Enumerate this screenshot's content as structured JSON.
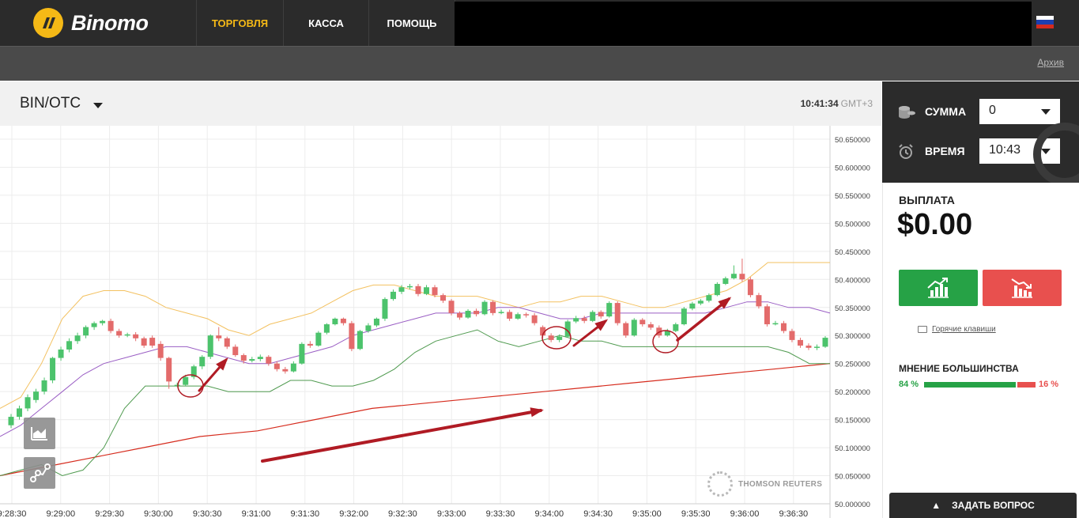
{
  "brand": {
    "name": "Binomo",
    "logo_color": "#f5b916"
  },
  "nav": {
    "items": [
      {
        "label": "ТОРГОВЛЯ",
        "active": true
      },
      {
        "label": "КАССА",
        "active": false
      },
      {
        "label": "ПОМОЩЬ",
        "active": false
      }
    ],
    "flag_icon": "russia-flag-icon"
  },
  "subbar": {
    "archive_label": "Архив"
  },
  "chart_header": {
    "asset": "BIN/OTC",
    "time": "10:41:34",
    "timezone": "GMT+3"
  },
  "panel": {
    "sum_label": "СУММА",
    "sum_value": "0",
    "time_label": "ВРЕМЯ",
    "time_value": "10:43",
    "payout_label": "ВЫПЛАТА",
    "payout_value": "$0.00",
    "hotkeys_label": "Горячие клавиши",
    "majority_label": "МНЕНИЕ БОЛЬШИНСТВА",
    "majority_up": "84 %",
    "majority_down": "16 %",
    "majority_up_fraction": 0.84,
    "ask_label": "ЗАДАТЬ ВОПРОС"
  },
  "colors": {
    "up": "#26a246",
    "down": "#e8504e",
    "candle_up": "#4cc36c",
    "candle_down": "#e36b6b",
    "accent": "#f5b916"
  },
  "watermark": "THOMSON REUTERS",
  "chart_data": {
    "type": "candlestick",
    "y_ticks": [
      "50.650000",
      "50.600000",
      "50.550000",
      "50.500000",
      "50.450000",
      "50.400000",
      "50.350000",
      "50.300000",
      "50.250000",
      "50.200000",
      "50.150000",
      "50.100000",
      "50.050000",
      "50.000000"
    ],
    "ylim": [
      50.0,
      50.67
    ],
    "x_ticks": [
      "9:28:30",
      "9:29:00",
      "9:29:30",
      "9:30:00",
      "9:30:30",
      "9:31:00",
      "9:31:30",
      "9:32:00",
      "9:32:30",
      "9:33:00",
      "9:33:30",
      "9:34:00",
      "9:34:30",
      "9:35:00",
      "9:35:30",
      "9:36:00",
      "9:36:30"
    ],
    "candles": [
      [
        50.14,
        50.155,
        50.135,
        50.16
      ],
      [
        50.155,
        50.17,
        50.15,
        50.175
      ],
      [
        50.17,
        50.19,
        50.165,
        50.195
      ],
      [
        50.185,
        50.2,
        50.18,
        50.205
      ],
      [
        50.2,
        50.22,
        50.195,
        50.225
      ],
      [
        50.22,
        50.26,
        50.215,
        50.262
      ],
      [
        50.26,
        50.275,
        50.255,
        50.28
      ],
      [
        50.275,
        50.29,
        50.27,
        50.295
      ],
      [
        50.29,
        50.3,
        50.285,
        50.305
      ],
      [
        50.3,
        50.315,
        50.295,
        50.318
      ],
      [
        50.315,
        50.322,
        50.31,
        50.325
      ],
      [
        50.322,
        50.326,
        50.318,
        50.328
      ],
      [
        50.326,
        50.308,
        50.304,
        50.33
      ],
      [
        50.308,
        50.3,
        50.296,
        50.312
      ],
      [
        50.3,
        50.302,
        50.297,
        50.305
      ],
      [
        50.302,
        50.295,
        50.29,
        50.306
      ],
      [
        50.295,
        50.282,
        50.278,
        50.298
      ],
      [
        50.296,
        50.282,
        50.278,
        50.3
      ],
      [
        50.285,
        50.26,
        50.255,
        50.29
      ],
      [
        50.26,
        50.218,
        50.205,
        50.262
      ],
      [
        50.21,
        50.212,
        50.208,
        50.216
      ],
      [
        50.212,
        50.226,
        50.21,
        50.23
      ],
      [
        50.226,
        50.245,
        50.222,
        50.248
      ],
      [
        50.245,
        50.262,
        50.24,
        50.265
      ],
      [
        50.262,
        50.3,
        50.258,
        50.302
      ],
      [
        50.3,
        50.295,
        50.29,
        50.315
      ],
      [
        50.295,
        50.28,
        50.276,
        50.298
      ],
      [
        50.28,
        50.265,
        50.262,
        50.284
      ],
      [
        50.265,
        50.255,
        50.25,
        50.268
      ],
      [
        50.255,
        50.258,
        50.252,
        50.262
      ],
      [
        50.258,
        50.262,
        50.254,
        50.266
      ],
      [
        50.262,
        50.25,
        50.246,
        50.265
      ],
      [
        50.25,
        50.24,
        50.236,
        50.254
      ],
      [
        50.24,
        50.236,
        50.232,
        50.244
      ],
      [
        50.236,
        50.25,
        50.234,
        50.254
      ],
      [
        50.25,
        50.285,
        50.248,
        50.288
      ],
      [
        50.285,
        50.282,
        50.278,
        50.29
      ],
      [
        50.282,
        50.305,
        50.28,
        50.308
      ],
      [
        50.305,
        50.32,
        50.302,
        50.322
      ],
      [
        50.32,
        50.33,
        50.318,
        50.332
      ],
      [
        50.33,
        50.322,
        50.318,
        50.332
      ],
      [
        50.322,
        50.276,
        50.272,
        50.326
      ],
      [
        50.276,
        50.308,
        50.274,
        50.31
      ],
      [
        50.308,
        50.318,
        50.305,
        50.322
      ],
      [
        50.318,
        50.33,
        50.315,
        50.332
      ],
      [
        50.33,
        50.365,
        50.326,
        50.368
      ],
      [
        50.365,
        50.378,
        50.362,
        50.382
      ],
      [
        50.378,
        50.386,
        50.374,
        50.39
      ],
      [
        50.386,
        50.388,
        50.382,
        50.392
      ],
      [
        50.388,
        50.374,
        50.37,
        50.392
      ],
      [
        50.374,
        50.386,
        50.372,
        50.39
      ],
      [
        50.386,
        50.372,
        50.368,
        50.39
      ],
      [
        50.372,
        50.362,
        50.358,
        50.375
      ],
      [
        50.362,
        50.34,
        50.336,
        50.365
      ],
      [
        50.34,
        50.332,
        50.328,
        50.343
      ],
      [
        50.332,
        50.344,
        50.33,
        50.347
      ],
      [
        50.344,
        50.338,
        50.334,
        50.348
      ],
      [
        50.338,
        50.36,
        50.336,
        50.363
      ],
      [
        50.36,
        50.34,
        50.336,
        50.363
      ],
      [
        50.34,
        50.342,
        50.338,
        50.346
      ],
      [
        50.342,
        50.33,
        50.326,
        50.346
      ],
      [
        50.33,
        50.338,
        50.328,
        50.341
      ],
      [
        50.338,
        50.336,
        50.332,
        50.341
      ],
      [
        50.336,
        50.322,
        50.318,
        50.34
      ],
      [
        50.315,
        50.3,
        50.296,
        50.318
      ],
      [
        50.3,
        50.292,
        50.288,
        50.304
      ],
      [
        50.292,
        50.298,
        50.288,
        50.302
      ],
      [
        50.298,
        50.325,
        50.296,
        50.328
      ],
      [
        50.325,
        50.331,
        50.322,
        50.335
      ],
      [
        50.331,
        50.326,
        50.322,
        50.335
      ],
      [
        50.326,
        50.342,
        50.324,
        50.345
      ],
      [
        50.342,
        50.334,
        50.33,
        50.345
      ],
      [
        50.334,
        50.358,
        50.332,
        50.361
      ],
      [
        50.358,
        50.322,
        50.318,
        50.361
      ],
      [
        50.322,
        50.3,
        50.296,
        50.325
      ],
      [
        50.3,
        50.328,
        50.298,
        50.331
      ],
      [
        50.328,
        50.32,
        50.316,
        50.331
      ],
      [
        50.32,
        50.314,
        50.31,
        50.324
      ],
      [
        50.314,
        50.3,
        50.296,
        50.318
      ],
      [
        50.3,
        50.308,
        50.298,
        50.312
      ],
      [
        50.308,
        50.32,
        50.306,
        50.323
      ],
      [
        50.32,
        50.348,
        50.318,
        50.351
      ],
      [
        50.348,
        50.357,
        50.345,
        50.36
      ],
      [
        50.357,
        50.362,
        50.354,
        50.365
      ],
      [
        50.362,
        50.372,
        50.359,
        50.375
      ],
      [
        50.372,
        50.392,
        50.37,
        50.395
      ],
      [
        50.392,
        50.402,
        50.39,
        50.405
      ],
      [
        50.402,
        50.41,
        50.4,
        50.425
      ],
      [
        50.41,
        50.4,
        50.396,
        50.437
      ],
      [
        50.4,
        50.372,
        50.368,
        50.404
      ],
      [
        50.372,
        50.352,
        50.348,
        50.376
      ],
      [
        50.352,
        50.32,
        50.316,
        50.356
      ],
      [
        50.32,
        50.322,
        50.318,
        50.326
      ],
      [
        50.322,
        50.308,
        50.304,
        50.326
      ],
      [
        50.308,
        50.292,
        50.288,
        50.312
      ],
      [
        50.292,
        50.282,
        50.278,
        50.296
      ],
      [
        50.282,
        50.278,
        50.274,
        50.286
      ],
      [
        50.278,
        50.28,
        50.274,
        50.284
      ],
      [
        50.28,
        50.296,
        50.278,
        50.299
      ]
    ],
    "lines": {
      "bollinger_upper": [
        50.17,
        50.19,
        50.25,
        50.33,
        50.37,
        50.38,
        50.38,
        50.37,
        50.35,
        50.34,
        50.33,
        50.31,
        50.3,
        50.32,
        50.33,
        50.34,
        50.36,
        50.38,
        50.39,
        50.39,
        50.38,
        50.37,
        50.37,
        50.37,
        50.36,
        50.35,
        50.36,
        50.36,
        50.37,
        50.37,
        50.36,
        50.35,
        50.35,
        50.36,
        50.37,
        50.38,
        50.4,
        50.43,
        50.43,
        50.43,
        50.43
      ],
      "middle_ma": [
        50.12,
        50.14,
        50.17,
        50.2,
        50.23,
        50.25,
        50.26,
        50.27,
        50.28,
        50.28,
        50.27,
        50.26,
        50.25,
        50.25,
        50.26,
        50.27,
        50.28,
        50.3,
        50.31,
        50.32,
        50.33,
        50.34,
        50.34,
        50.34,
        50.35,
        50.35,
        50.34,
        50.33,
        50.33,
        50.34,
        50.34,
        50.34,
        50.34,
        50.34,
        50.34,
        50.35,
        50.36,
        50.36,
        50.35,
        50.35,
        50.34
      ],
      "bollinger_lower": [
        50.05,
        50.06,
        50.07,
        50.05,
        50.06,
        50.1,
        50.17,
        50.21,
        50.21,
        50.21,
        50.21,
        50.2,
        50.2,
        50.2,
        50.22,
        50.22,
        50.21,
        50.21,
        50.22,
        50.24,
        50.27,
        50.29,
        50.3,
        50.31,
        50.29,
        50.28,
        50.29,
        50.3,
        50.29,
        50.29,
        50.28,
        50.28,
        50.28,
        50.28,
        50.28,
        50.28,
        50.28,
        50.28,
        50.27,
        50.25,
        50.25
      ],
      "long_ma": [
        50.05,
        50.06,
        50.07,
        50.08,
        50.09,
        50.1,
        50.11,
        50.12,
        50.125,
        50.13,
        50.14,
        50.15,
        50.16,
        50.17,
        50.175,
        50.18,
        50.185,
        50.19,
        50.195,
        50.2,
        50.205,
        50.21,
        50.215,
        50.22,
        50.225,
        50.23,
        50.235,
        50.24,
        50.245,
        50.25
      ]
    }
  }
}
